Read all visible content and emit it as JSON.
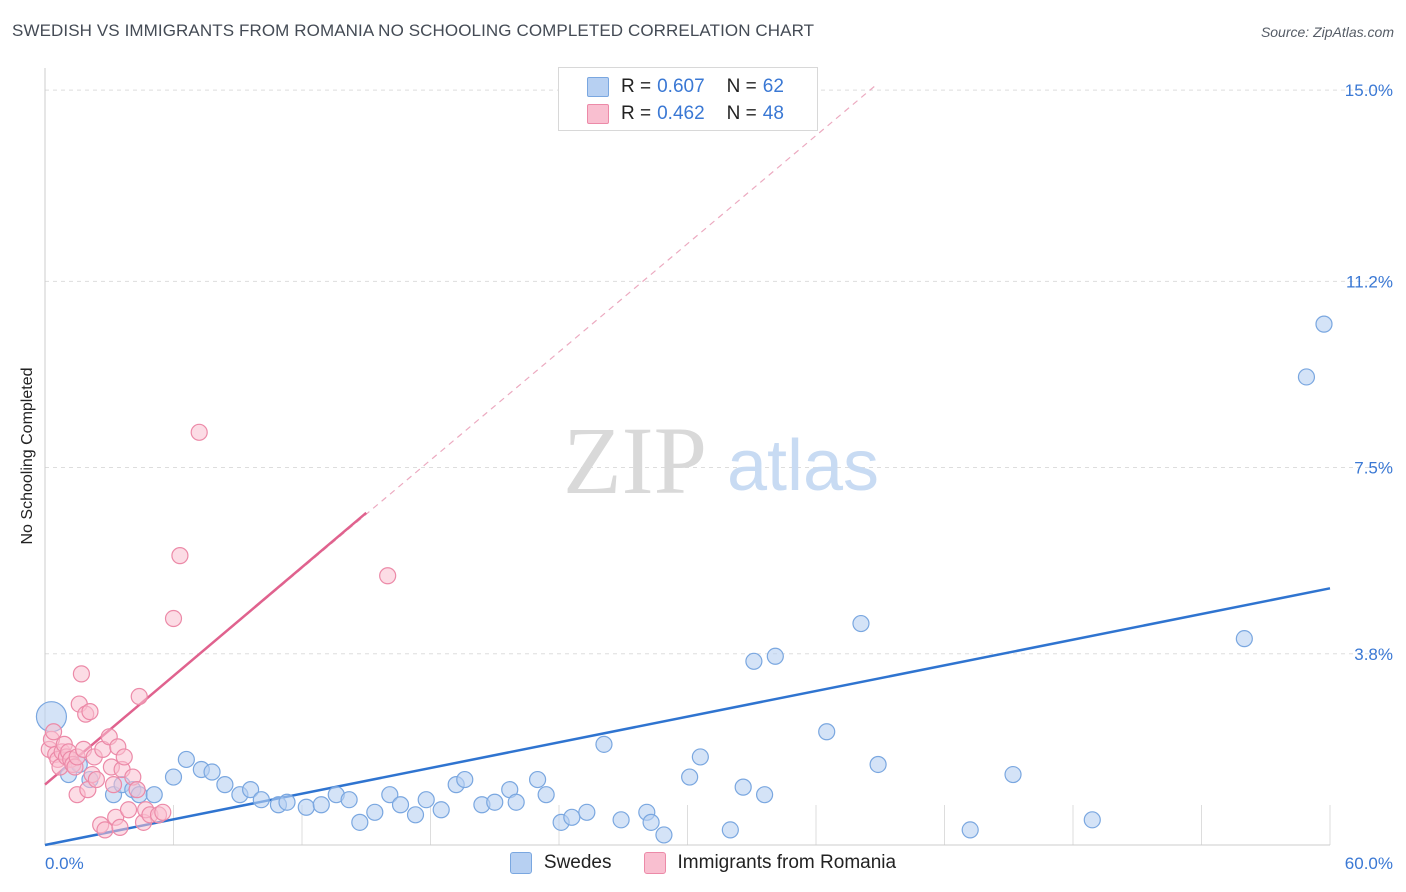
{
  "header": {
    "title": "SWEDISH VS IMMIGRANTS FROM ROMANIA NO SCHOOLING COMPLETED CORRELATION CHART",
    "source": "Source: ZipAtlas.com"
  },
  "watermark": {
    "zip": "ZIP",
    "atlas": "atlas"
  },
  "legend": {
    "swedes": {
      "r_label": "R =",
      "r_value": "0.607",
      "n_label": "N =",
      "n_value": "62"
    },
    "romania": {
      "r_label": "R =",
      "r_value": "0.462",
      "n_label": "N =",
      "n_value": "48"
    }
  },
  "colors": {
    "swedes_fill": "#b7d0f2",
    "swedes_stroke": "#7aa7e0",
    "swedes_line": "#2f74d0",
    "romania_fill": "#f9bfd0",
    "romania_stroke": "#ec8aa8",
    "romania_line": "#e0628e",
    "tick_text": "#3a78d4"
  },
  "chart_data": {
    "type": "scatter",
    "title": "SWEDISH VS IMMIGRANTS FROM ROMANIA NO SCHOOLING COMPLETED CORRELATION CHART",
    "xlabel": "",
    "ylabel": "No Schooling Completed",
    "xlim": [
      0,
      60
    ],
    "ylim": [
      0,
      15.3
    ],
    "x_tick_labels": [
      "0.0%",
      "60.0%"
    ],
    "y_ticks": [
      3.8,
      7.5,
      11.2,
      15.0
    ],
    "y_tick_labels": [
      "3.8%",
      "7.5%",
      "11.2%",
      "15.0%"
    ],
    "grid": true,
    "series": [
      {
        "name": "Swedes",
        "r": 0.607,
        "n": 62,
        "trend": {
          "x": [
            0,
            60
          ],
          "y": [
            0.0,
            5.1
          ],
          "style": "solid"
        },
        "points": [
          [
            0.3,
            2.55,
            "large"
          ],
          [
            1.1,
            1.4
          ],
          [
            1.6,
            1.6
          ],
          [
            2.1,
            1.3
          ],
          [
            3.2,
            1.0
          ],
          [
            3.6,
            1.2
          ],
          [
            4.1,
            1.1
          ],
          [
            4.4,
            1.0
          ],
          [
            5.1,
            1.0
          ],
          [
            6.0,
            1.35
          ],
          [
            6.6,
            1.7
          ],
          [
            7.3,
            1.5
          ],
          [
            7.8,
            1.45
          ],
          [
            8.4,
            1.2
          ],
          [
            9.1,
            1.0
          ],
          [
            9.6,
            1.1
          ],
          [
            10.1,
            0.9
          ],
          [
            10.9,
            0.8
          ],
          [
            11.3,
            0.85
          ],
          [
            12.2,
            0.75
          ],
          [
            12.9,
            0.8
          ],
          [
            13.6,
            1.0
          ],
          [
            14.2,
            0.9
          ],
          [
            14.7,
            0.45
          ],
          [
            15.4,
            0.65
          ],
          [
            16.1,
            1.0
          ],
          [
            16.6,
            0.8
          ],
          [
            17.3,
            0.6
          ],
          [
            17.8,
            0.9
          ],
          [
            18.5,
            0.7
          ],
          [
            19.2,
            1.2
          ],
          [
            19.6,
            1.3
          ],
          [
            20.4,
            0.8
          ],
          [
            21.0,
            0.85
          ],
          [
            21.7,
            1.1
          ],
          [
            22.0,
            0.85
          ],
          [
            23.0,
            1.3
          ],
          [
            23.4,
            1.0
          ],
          [
            24.1,
            0.45
          ],
          [
            24.6,
            0.55
          ],
          [
            25.3,
            0.65
          ],
          [
            26.1,
            2.0
          ],
          [
            26.9,
            0.5
          ],
          [
            28.1,
            0.65
          ],
          [
            28.3,
            0.45
          ],
          [
            28.9,
            0.2
          ],
          [
            30.1,
            1.35
          ],
          [
            30.6,
            1.75
          ],
          [
            32.0,
            0.3
          ],
          [
            32.6,
            1.15
          ],
          [
            33.1,
            3.65
          ],
          [
            33.6,
            1.0
          ],
          [
            34.1,
            3.75
          ],
          [
            36.5,
            2.25
          ],
          [
            38.1,
            4.4
          ],
          [
            38.9,
            1.6
          ],
          [
            43.2,
            0.3
          ],
          [
            45.2,
            1.4
          ],
          [
            48.9,
            0.5
          ],
          [
            56.0,
            4.1
          ],
          [
            58.9,
            9.3
          ],
          [
            61.2,
            10.35
          ]
        ]
      },
      {
        "name": "Immigrants from Romania",
        "r": 0.462,
        "n": 48,
        "trend": {
          "x": [
            0,
            15
          ],
          "y": [
            1.2,
            6.6
          ],
          "style": "solid",
          "extended": {
            "x": [
              0,
              38.8
            ],
            "y": [
              1.2,
              15.1
            ],
            "style": "dashed"
          }
        },
        "points": [
          [
            0.2,
            1.9
          ],
          [
            0.3,
            2.1
          ],
          [
            0.4,
            2.25
          ],
          [
            0.5,
            1.8
          ],
          [
            0.6,
            1.7
          ],
          [
            0.7,
            1.55
          ],
          [
            0.8,
            1.85
          ],
          [
            0.9,
            2.0
          ],
          [
            1.0,
            1.75
          ],
          [
            1.1,
            1.85
          ],
          [
            1.2,
            1.7
          ],
          [
            1.3,
            1.6
          ],
          [
            1.4,
            1.55
          ],
          [
            1.5,
            1.75
          ],
          [
            1.5,
            1.0
          ],
          [
            1.6,
            2.8
          ],
          [
            1.7,
            3.4
          ],
          [
            1.8,
            1.9
          ],
          [
            1.9,
            2.6
          ],
          [
            2.0,
            1.1
          ],
          [
            2.1,
            2.65
          ],
          [
            2.2,
            1.4
          ],
          [
            2.3,
            1.75
          ],
          [
            2.4,
            1.3
          ],
          [
            2.6,
            0.4
          ],
          [
            2.7,
            1.9
          ],
          [
            2.8,
            0.3
          ],
          [
            3.0,
            2.15
          ],
          [
            3.1,
            1.55
          ],
          [
            3.2,
            1.2
          ],
          [
            3.3,
            0.55
          ],
          [
            3.4,
            1.95
          ],
          [
            3.5,
            0.35
          ],
          [
            3.6,
            1.5
          ],
          [
            3.7,
            1.75
          ],
          [
            3.9,
            0.7
          ],
          [
            4.1,
            1.35
          ],
          [
            4.3,
            1.1
          ],
          [
            4.4,
            2.95
          ],
          [
            4.6,
            0.45
          ],
          [
            4.7,
            0.7
          ],
          [
            4.9,
            0.6
          ],
          [
            5.3,
            0.6
          ],
          [
            5.5,
            0.65
          ],
          [
            6.0,
            4.5
          ],
          [
            6.3,
            5.75
          ],
          [
            7.2,
            8.2
          ],
          [
            16.0,
            5.35
          ]
        ]
      }
    ],
    "legend_position": "top-center"
  },
  "bottom_legend": {
    "swedes": "Swedes",
    "romania": "Immigrants from Romania"
  }
}
